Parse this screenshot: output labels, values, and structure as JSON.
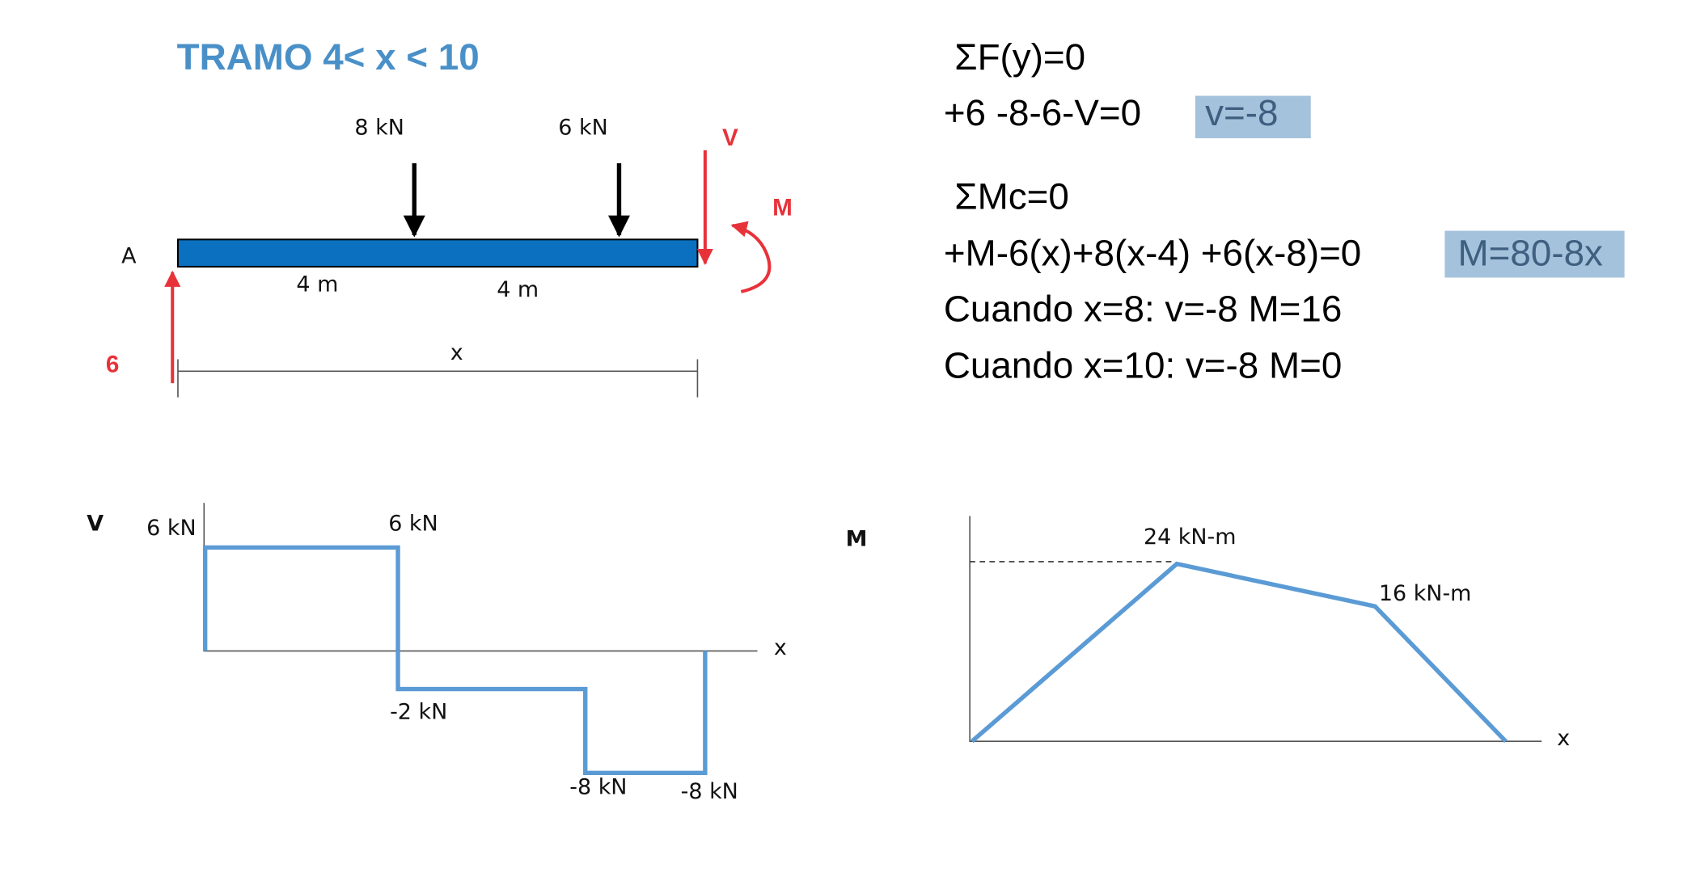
{
  "title": "TRAMO 4< x < 10",
  "beam": {
    "loads": [
      "8 kN",
      "6 kN"
    ],
    "support_label": "A",
    "reaction": "6",
    "shear_label": "V",
    "moment_label": "M",
    "spans": [
      "4 m",
      "4 m"
    ],
    "x_label": "x"
  },
  "equations": {
    "lines": [
      "ΣF(y)=0",
      "+6 -8-6-V=0",
      "ΣMc=0",
      "+M-6(x)+8(x-4) +6(x-8)=0",
      "Cuando x=8: v=-8 M=16",
      "Cuando x=10: v=-8 M=0"
    ],
    "results": [
      "v=-8",
      "M=80-8x"
    ]
  },
  "shear_diagram": {
    "axis_label": "V",
    "x_label": "x",
    "labels": [
      "6 kN",
      "6 kN",
      "-2 kN",
      "-8 kN",
      "-8 kN"
    ]
  },
  "moment_diagram": {
    "axis_label": "M",
    "x_label": "x",
    "labels": [
      "24 kN-m",
      "16 kN-m"
    ]
  }
}
